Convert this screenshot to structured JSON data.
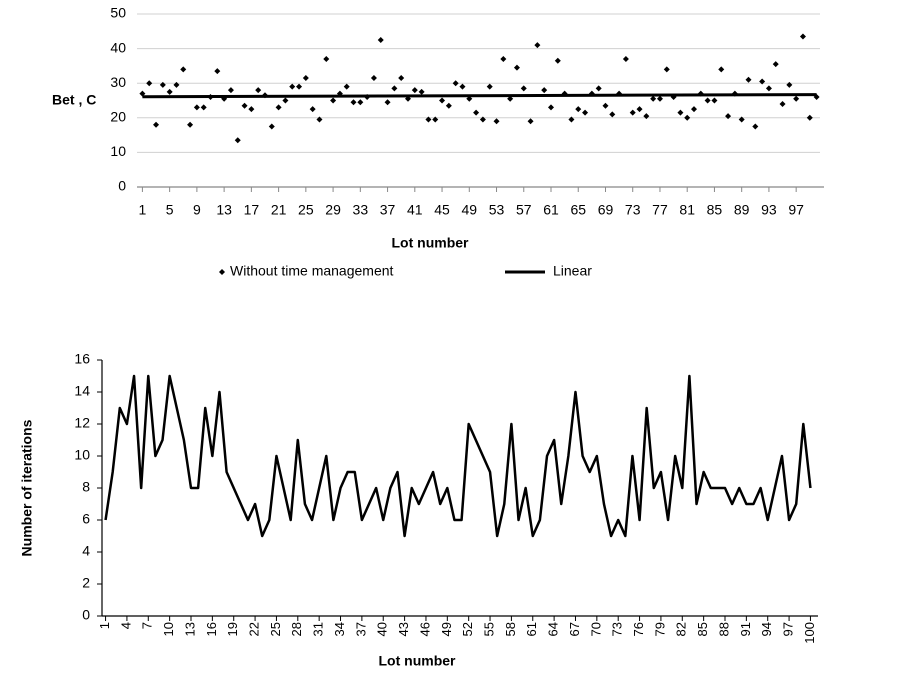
{
  "chart_data": [
    {
      "type": "scatter",
      "y_label": "Bet , C",
      "x_label": "Lot number",
      "x": [
        1,
        2,
        3,
        4,
        5,
        6,
        7,
        8,
        9,
        10,
        11,
        12,
        13,
        14,
        15,
        16,
        17,
        18,
        19,
        20,
        21,
        22,
        23,
        24,
        25,
        26,
        27,
        28,
        29,
        30,
        31,
        32,
        33,
        34,
        35,
        36,
        37,
        38,
        39,
        40,
        41,
        42,
        43,
        44,
        45,
        46,
        47,
        48,
        49,
        50,
        51,
        52,
        53,
        54,
        55,
        56,
        57,
        58,
        59,
        60,
        61,
        62,
        63,
        64,
        65,
        66,
        67,
        68,
        69,
        70,
        71,
        72,
        73,
        74,
        75,
        76,
        77,
        78,
        79,
        80,
        81,
        82,
        83,
        84,
        85,
        86,
        87,
        88,
        89,
        90,
        91,
        92,
        93,
        94,
        95,
        96,
        97,
        98,
        99,
        100
      ],
      "series": [
        {
          "name": "Without time management",
          "color": "#000000",
          "marker": "diamond",
          "values": [
            27,
            30,
            18,
            29.5,
            27.5,
            29.5,
            34,
            18,
            23,
            23,
            26,
            33.5,
            25.5,
            28,
            13.5,
            23.5,
            22.5,
            28,
            26.5,
            17.5,
            23,
            25,
            29,
            29,
            31.5,
            22.5,
            19.5,
            37,
            25,
            27,
            29,
            24.5,
            24.5,
            26,
            31.5,
            42.5,
            24.5,
            28.5,
            31.5,
            25.5,
            28,
            27.5,
            19.5,
            19.5,
            25,
            23.5,
            30,
            29,
            25.5,
            21.5,
            19.5,
            29,
            19,
            37,
            25.5,
            34.5,
            28.5,
            19,
            41,
            28,
            23,
            36.5,
            27,
            19.5,
            22.5,
            21.5,
            27,
            28.5,
            23.5,
            21,
            27,
            37,
            21.5,
            22.5,
            20.5,
            25.5,
            25.5,
            34,
            26,
            21.5,
            20,
            22.5,
            27,
            25,
            25,
            34,
            20.5,
            27,
            19.5,
            31,
            17.5,
            30.5,
            28.5,
            35.5,
            24,
            29.5,
            25.5,
            43.5,
            20,
            26
          ]
        },
        {
          "name": "Linear",
          "type": "line",
          "color": "#000000",
          "x": [
            1,
            100
          ],
          "values": [
            26.1,
            26.7
          ]
        }
      ],
      "xlim": [
        0.5,
        100.5
      ],
      "ylim": [
        0,
        50
      ],
      "xticks": [
        1,
        5,
        9,
        13,
        17,
        21,
        25,
        29,
        33,
        37,
        41,
        45,
        49,
        53,
        57,
        61,
        65,
        69,
        73,
        77,
        81,
        85,
        89,
        93,
        97
      ],
      "yticks": [
        0,
        10,
        20,
        30,
        40,
        50
      ],
      "grid": true,
      "legend": "bottom"
    },
    {
      "type": "line",
      "y_label": "Number of iterations",
      "x_label": "Lot number",
      "x": [
        1,
        2,
        3,
        4,
        5,
        6,
        7,
        8,
        9,
        10,
        11,
        12,
        13,
        14,
        15,
        16,
        17,
        18,
        19,
        20,
        21,
        22,
        23,
        24,
        25,
        26,
        27,
        28,
        29,
        30,
        31,
        32,
        33,
        34,
        35,
        36,
        37,
        38,
        39,
        40,
        41,
        42,
        43,
        44,
        45,
        46,
        47,
        48,
        49,
        50,
        51,
        52,
        53,
        54,
        55,
        56,
        57,
        58,
        59,
        60,
        61,
        62,
        63,
        64,
        65,
        66,
        67,
        68,
        69,
        70,
        71,
        72,
        73,
        74,
        75,
        76,
        77,
        78,
        79,
        80,
        81,
        82,
        83,
        84,
        85,
        86,
        87,
        88,
        89,
        90,
        91,
        92,
        93,
        94,
        95,
        96,
        97,
        98,
        99,
        100
      ],
      "series": [
        {
          "color": "#000000",
          "values": [
            6,
            9,
            13,
            12,
            15,
            8,
            15,
            10,
            11,
            15,
            13,
            11,
            8,
            8,
            13,
            10,
            14,
            9,
            8,
            7,
            6,
            7,
            5,
            6,
            10,
            8,
            6,
            11,
            7,
            6,
            8,
            10,
            6,
            8,
            9,
            9,
            6,
            7,
            8,
            6,
            8,
            9,
            5,
            8,
            7,
            8,
            9,
            7,
            8,
            6,
            6,
            12,
            11,
            10,
            9,
            5,
            7,
            12,
            6,
            8,
            5,
            6,
            10,
            11,
            7,
            10,
            14,
            10,
            9,
            10,
            7,
            5,
            6,
            5,
            10,
            6,
            13,
            8,
            9,
            6,
            10,
            8,
            15,
            7,
            9,
            8,
            8,
            8,
            7,
            8,
            7,
            7,
            8,
            6,
            8,
            10,
            6,
            7,
            12,
            8
          ]
        }
      ],
      "xlim": [
        0.5,
        100.5
      ],
      "ylim": [
        0,
        16
      ],
      "xticks": [
        1,
        4,
        7,
        10,
        13,
        16,
        19,
        22,
        25,
        28,
        31,
        34,
        37,
        40,
        43,
        46,
        49,
        52,
        55,
        58,
        61,
        64,
        67,
        70,
        73,
        76,
        79,
        82,
        85,
        88,
        91,
        94,
        97,
        100
      ],
      "yticks": [
        0,
        2,
        4,
        6,
        8,
        10,
        12,
        14,
        16
      ],
      "grid": false,
      "xtick_rotation": -90
    }
  ]
}
